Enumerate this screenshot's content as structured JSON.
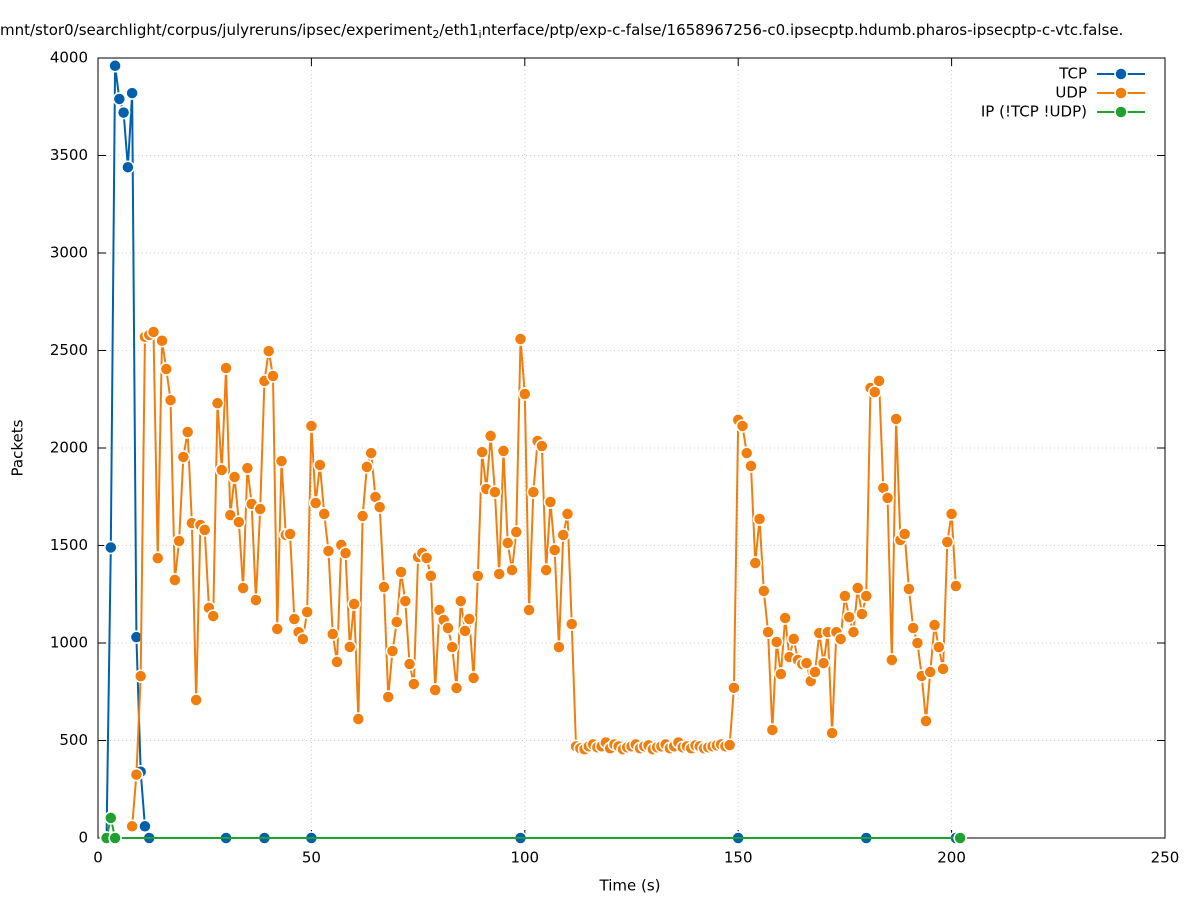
{
  "chart_data": {
    "type": "line",
    "title": [
      "mnt/stor0/searchlight/corpus/julyreruns/ipsec/experiment",
      "2",
      "/eth1",
      "i",
      "nterface/ptp/exp-c-false/1658967256-c0.ipsecptp.hdumb.pharos-ipsecptp-c-vtc.false."
    ],
    "xlabel": "Time (s)",
    "ylabel": "Packets",
    "xlim": [
      0,
      250
    ],
    "ylim": [
      0,
      4000
    ],
    "xticks": [
      0,
      50,
      100,
      150,
      200,
      250
    ],
    "yticks": [
      0,
      500,
      1000,
      1500,
      2000,
      2500,
      3000,
      3500,
      4000
    ],
    "grid": true,
    "legend": "top-right",
    "series": [
      {
        "name": "TCP",
        "color": "#0060ad",
        "x": [
          2,
          3,
          4,
          5,
          6,
          7,
          8,
          9,
          10,
          11,
          12,
          30,
          39,
          50,
          99,
          150,
          180,
          201
        ],
        "values": [
          0,
          1490,
          3960,
          3790,
          3720,
          3440,
          3820,
          1030,
          340,
          60,
          0,
          0,
          0,
          0,
          0,
          0,
          0,
          0
        ]
      },
      {
        "name": "UDP",
        "color": "#f07e0f",
        "x": [
          8,
          9,
          10,
          11,
          12,
          13,
          14,
          15,
          16,
          17,
          18,
          19,
          20,
          21,
          22,
          23,
          24,
          25,
          26,
          27,
          28,
          29,
          30,
          31,
          32,
          33,
          34,
          35,
          36,
          37,
          38,
          39,
          40,
          41,
          42,
          43,
          44,
          45,
          46,
          47,
          48,
          49,
          50,
          51,
          52,
          53,
          54,
          55,
          56,
          57,
          58,
          59,
          60,
          61,
          62,
          63,
          64,
          65,
          66,
          67,
          68,
          69,
          70,
          71,
          72,
          73,
          74,
          75,
          76,
          77,
          78,
          79,
          80,
          81,
          82,
          83,
          84,
          85,
          86,
          87,
          88,
          89,
          90,
          91,
          92,
          93,
          94,
          95,
          96,
          97,
          98,
          99,
          100,
          101,
          102,
          103,
          104,
          105,
          106,
          107,
          108,
          109,
          110,
          111,
          112,
          113,
          114,
          115,
          116,
          117,
          118,
          119,
          120,
          121,
          122,
          123,
          124,
          125,
          126,
          127,
          128,
          129,
          130,
          131,
          132,
          133,
          134,
          135,
          136,
          137,
          138,
          139,
          140,
          141,
          142,
          143,
          144,
          145,
          146,
          147,
          148,
          149,
          150,
          151,
          152,
          153,
          154,
          155,
          156,
          157,
          158,
          159,
          160,
          161,
          162,
          163,
          164,
          165,
          166,
          167,
          168,
          169,
          170,
          171,
          172,
          173,
          174,
          175,
          176,
          177,
          178,
          179,
          180,
          181,
          182,
          183,
          184,
          185,
          186,
          187,
          188,
          189,
          190,
          191,
          192,
          193,
          194,
          195,
          196,
          197,
          198,
          199,
          200,
          201
        ],
        "values": [
          60,
          325,
          830,
          2570,
          2580,
          2595,
          1435,
          2550,
          2405,
          2245,
          1323,
          1523,
          1954,
          2082,
          1615,
          708,
          1605,
          1580,
          1180,
          1138,
          2230,
          1887,
          2410,
          1656,
          1851,
          1620,
          1282,
          1897,
          1713,
          1220,
          1687,
          2344,
          2497,
          2369,
          1072,
          1933,
          1554,
          1559,
          1123,
          1056,
          1020,
          1159,
          2113,
          1718,
          1913,
          1662,
          1472,
          1046,
          903,
          1503,
          1461,
          980,
          1200,
          610,
          1651,
          1903,
          1974,
          1749,
          1697,
          1287,
          723,
          959,
          1108,
          1364,
          1215,
          892,
          790,
          1441,
          1462,
          1436,
          1344,
          759,
          1169,
          1118,
          1077,
          979,
          769,
          1215,
          1062,
          1123,
          821,
          1344,
          1979,
          1790,
          2062,
          1774,
          1354,
          1985,
          1513,
          1374,
          1569,
          2559,
          2277,
          1169,
          1774,
          2036,
          2010,
          1374,
          1723,
          1477,
          979,
          1554,
          1662,
          1097,
          470,
          460,
          455,
          470,
          480,
          465,
          470,
          490,
          460,
          480,
          470,
          455,
          465,
          470,
          480,
          460,
          470,
          475,
          455,
          465,
          470,
          480,
          460,
          470,
          490,
          465,
          470,
          460,
          475,
          470,
          460,
          465,
          470,
          475,
          480,
          470,
          477,
          770,
          2144,
          2113,
          1974,
          1908,
          1410,
          1636,
          1267,
          1056,
          554,
          1005,
          841,
          1128,
          928,
          1021,
          913,
          892,
          897,
          805,
          851,
          1051,
          897,
          1056,
          538,
          1056,
          1020,
          1241,
          1133,
          1056,
          1282,
          1149,
          1241,
          2308,
          2287,
          2344,
          1795,
          1744,
          913,
          2149,
          1528,
          1559,
          1277,
          1077,
          1000,
          831,
          600,
          851,
          1092,
          979,
          867,
          1518,
          1662,
          1292
        ]
      },
      {
        "name": "IP (!TCP  !UDP)",
        "color": "#20a030",
        "x": [
          2,
          3,
          4,
          202
        ],
        "values": [
          0,
          103,
          0,
          0
        ]
      }
    ]
  }
}
